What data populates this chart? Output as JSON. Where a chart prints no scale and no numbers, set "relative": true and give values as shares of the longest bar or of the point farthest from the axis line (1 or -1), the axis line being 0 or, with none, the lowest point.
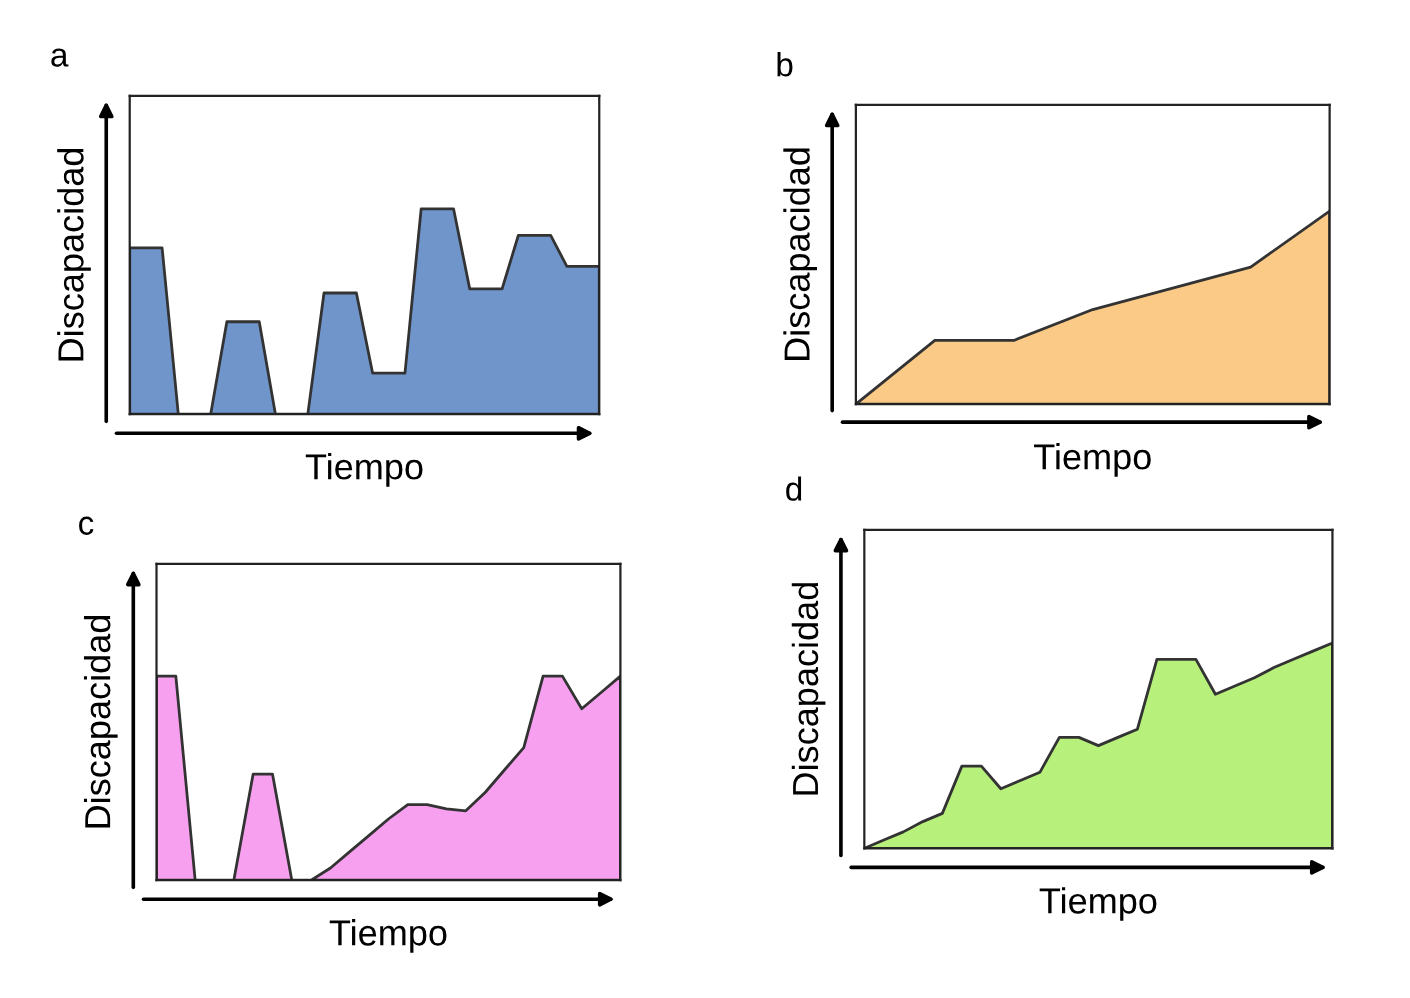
{
  "chart_data": [
    {
      "type": "area",
      "title": "a",
      "xlabel": "Tiempo",
      "ylabel": "Discapacidad",
      "relative": true,
      "tick_labels": false,
      "categories": [
        null,
        null,
        null,
        null,
        null,
        null,
        null,
        null,
        null,
        null,
        null,
        null,
        null,
        null,
        null,
        null,
        null,
        null,
        null,
        null,
        null,
        null,
        null,
        null,
        null,
        null,
        null,
        null,
        null,
        null
      ],
      "series": [
        {
          "color": "#7095cb",
          "values": [
            0.81,
            0.81,
            0.81,
            0,
            0,
            0,
            0.45,
            0.45,
            0.45,
            0,
            0,
            0,
            0.59,
            0.59,
            0.59,
            0.2,
            0.2,
            0.2,
            1,
            1,
            1,
            0.61,
            0.61,
            0.61,
            0.87,
            0.87,
            0.87,
            0.72,
            0.72,
            0.72
          ]
        }
      ]
    },
    {
      "type": "area",
      "title": "b",
      "xlabel": "Tiempo",
      "ylabel": "Discapacidad",
      "relative": true,
      "tick_labels": false,
      "categories": [
        null,
        null,
        null,
        null,
        null,
        null,
        null
      ],
      "series": [
        {
          "color": "#fbca86",
          "values": [
            0,
            0.33,
            0.33,
            0.49,
            0.6,
            0.71,
            1
          ]
        }
      ]
    },
    {
      "type": "area",
      "title": "c",
      "xlabel": "Tiempo",
      "ylabel": "Discapacidad",
      "relative": true,
      "tick_labels": false,
      "categories": [
        null,
        null,
        null,
        null,
        null,
        null,
        null,
        null,
        null,
        null,
        null,
        null,
        null,
        null,
        null,
        null,
        null,
        null,
        null,
        null,
        null,
        null,
        null,
        null,
        null
      ],
      "series": [
        {
          "color": "#f7a0f0",
          "values": [
            1,
            1,
            0,
            0,
            0,
            0.52,
            0.52,
            0,
            0,
            0.06,
            0.14,
            0.22,
            0.3,
            0.37,
            0.37,
            0.35,
            0.34,
            0.43,
            0.54,
            0.65,
            1,
            1,
            0.84,
            0.92,
            1
          ]
        }
      ]
    },
    {
      "type": "area",
      "title": "d",
      "xlabel": "Tiempo",
      "ylabel": "Discapacidad",
      "relative": true,
      "tick_labels": false,
      "categories": [
        null,
        null,
        null,
        null,
        null,
        null,
        null,
        null,
        null,
        null,
        null,
        null,
        null,
        null,
        null,
        null,
        null,
        null,
        null,
        null,
        null,
        null,
        null,
        null,
        null
      ],
      "series": [
        {
          "color": "#b8f07c",
          "values": [
            0,
            0.04,
            0.08,
            0.13,
            0.17,
            0.4,
            0.4,
            0.29,
            0.33,
            0.37,
            0.54,
            0.54,
            0.5,
            0.54,
            0.58,
            0.92,
            0.92,
            0.92,
            0.75,
            0.79,
            0.83,
            0.88,
            0.92,
            0.96,
            1
          ]
        }
      ]
    }
  ]
}
